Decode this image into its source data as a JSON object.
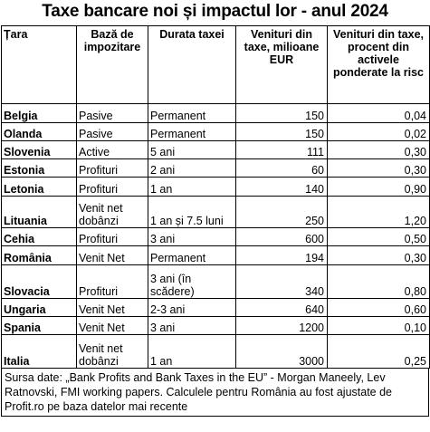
{
  "title": "Taxe bancare noi și impactul lor - anul 2024",
  "headers": {
    "country": "Țara",
    "base": "Bază de impozitare",
    "duration": "Durata taxei",
    "revenue_eur": "Venituri din taxe, milioane EUR",
    "revenue_pct": "Venituri din taxe, procent din activele ponderate la risc"
  },
  "rows": [
    {
      "country": "Belgia",
      "base": "Pasive",
      "duration": "Permanent",
      "revenue_eur": "150",
      "revenue_pct": "0,04"
    },
    {
      "country": "Olanda",
      "base": "Pasive",
      "duration": "Permanent",
      "revenue_eur": "150",
      "revenue_pct": "0,02"
    },
    {
      "country": "Slovenia",
      "base": "Active",
      "duration": "5 ani",
      "revenue_eur": "111",
      "revenue_pct": "0,30"
    },
    {
      "country": "Estonia",
      "base": "Profituri",
      "duration": "2 ani",
      "revenue_eur": "60",
      "revenue_pct": "0,30"
    },
    {
      "country": "Letonia",
      "base": "Profituri",
      "duration": "1 an",
      "revenue_eur": "140",
      "revenue_pct": "0,90"
    },
    {
      "country": "Lituania",
      "base": "Venit net dobânzi",
      "duration": "1 an și 7.5 luni",
      "revenue_eur": "250",
      "revenue_pct": "1,20"
    },
    {
      "country": "Cehia",
      "base": "Profituri",
      "duration": "3 ani",
      "revenue_eur": "600",
      "revenue_pct": "0,50"
    },
    {
      "country": "România",
      "base": "Venit Net",
      "duration": "Permanent",
      "revenue_eur": "194",
      "revenue_pct": "0,30"
    },
    {
      "country": "Slovacia",
      "base": "Profituri",
      "duration": "3 ani (în scădere)",
      "revenue_eur": "340",
      "revenue_pct": "0,80"
    },
    {
      "country": "Ungaria",
      "base": "Venit Net",
      "duration": "2-3 ani",
      "revenue_eur": "640",
      "revenue_pct": "0,60"
    },
    {
      "country": "Spania",
      "base": "Venit Net",
      "duration": "3 ani",
      "revenue_eur": "1200",
      "revenue_pct": "0,10"
    },
    {
      "country": "Italia",
      "base": "Venit net dobânzi",
      "duration": "1 an",
      "revenue_eur": "3000",
      "revenue_pct": "0,25"
    }
  ],
  "note": "Sursa date: „Bank Profits and Bank Taxes in the EU” - Morgan Maneely, Lev Ratnovski, FMI working papers. Calculele pentru România au fost ajustate de Profit.ro pe baza datelor mai recente"
}
